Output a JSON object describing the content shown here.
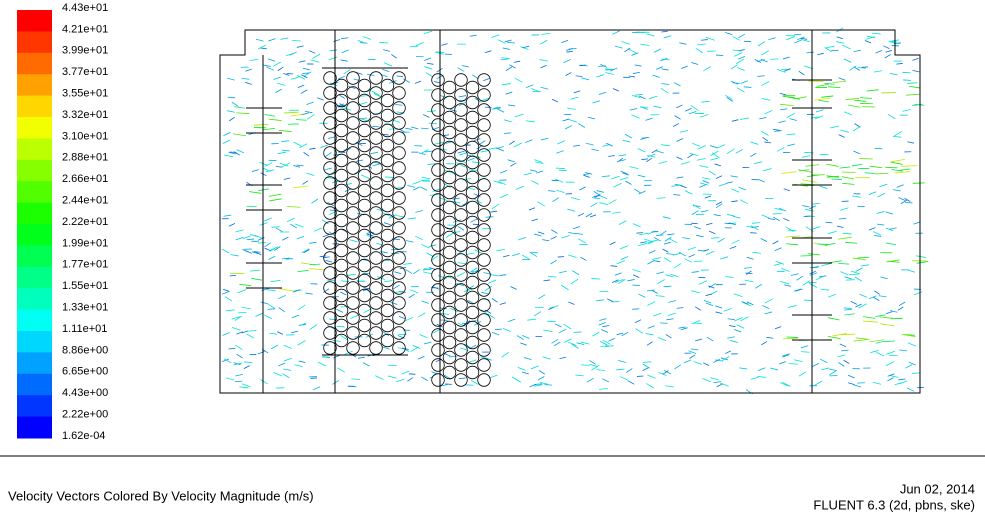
{
  "colorbar": {
    "labels": [
      "4.43e+01",
      "4.21e+01",
      "3.99e+01",
      "3.77e+01",
      "3.55e+01",
      "3.32e+01",
      "3.10e+01",
      "2.88e+01",
      "2.66e+01",
      "2.44e+01",
      "2.22e+01",
      "1.99e+01",
      "1.77e+01",
      "1.55e+01",
      "1.33e+01",
      "1.11e+01",
      "8.86e+00",
      "6.65e+00",
      "4.43e+00",
      "2.22e+00",
      "1.62e-04"
    ]
  },
  "footer": {
    "caption": "Velocity Vectors Colored By Velocity Magnitude (m/s)",
    "date": "Jun 02, 2014",
    "software": "FLUENT 6.3 (2d, pbns, ske)"
  }
}
